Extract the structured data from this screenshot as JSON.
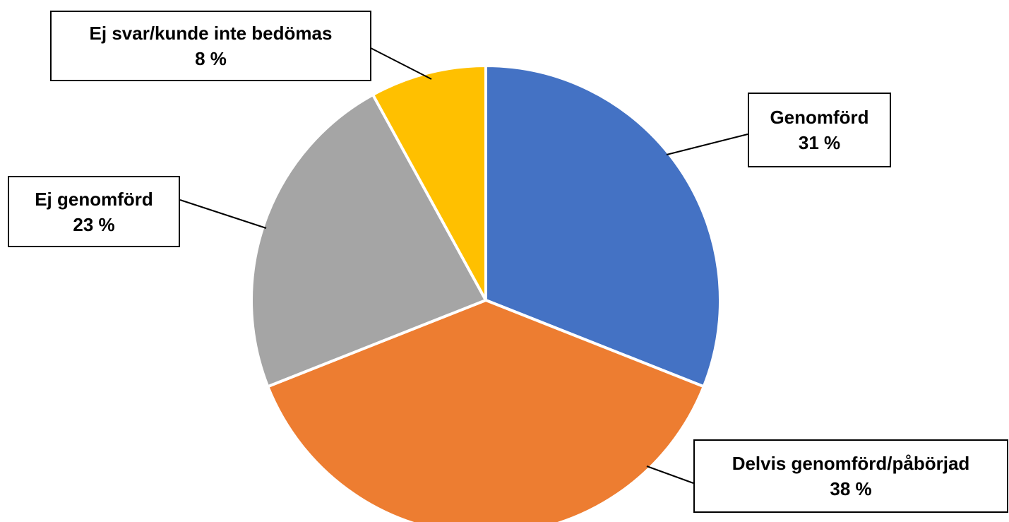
{
  "chart_data": {
    "type": "pie",
    "slices": [
      {
        "label": "Genomförd",
        "value": 31,
        "value_label": "31 %",
        "color": "#4472C4"
      },
      {
        "label": "Delvis genomförd/påbörjad",
        "value": 38,
        "value_label": "38 %",
        "color": "#ED7D31"
      },
      {
        "label": "Ej genomförd",
        "value": 23,
        "value_label": "23 %",
        "color": "#A5A5A5"
      },
      {
        "label": "Ej svar/kunde inte bedömas",
        "value": 8,
        "value_label": "8 %",
        "color": "#FFC000"
      }
    ],
    "start_angle": "12 o'clock",
    "direction": "clockwise",
    "legend": "none",
    "data_labels": "callout boxes with leader lines"
  }
}
